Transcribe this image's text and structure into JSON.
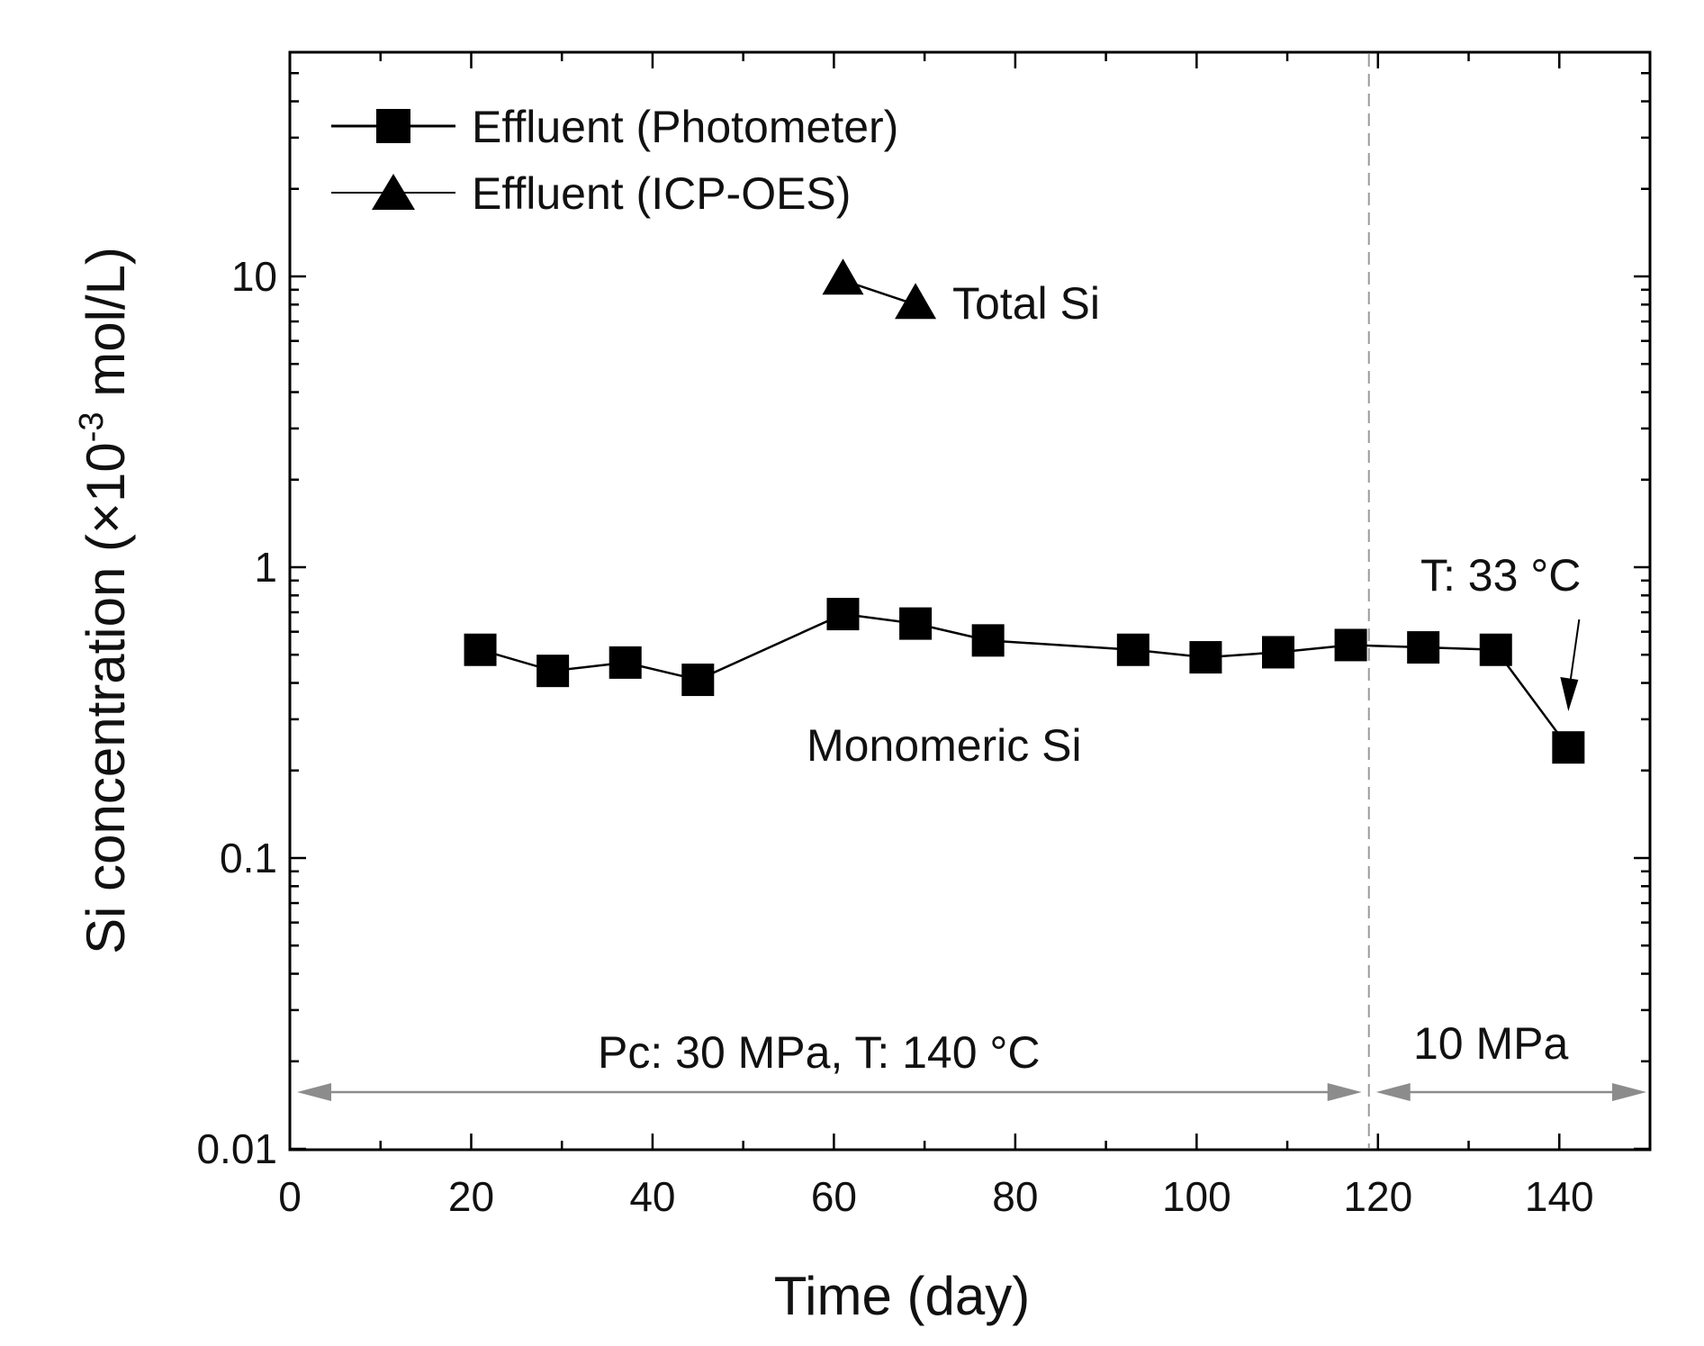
{
  "chart_data": {
    "type": "line",
    "title": "",
    "xlabel": "Time (day)",
    "ylabel": {
      "prefix": "Si concentration (×10",
      "exponent": "-3",
      "suffix": " mol/L)"
    },
    "xlim": [
      0,
      150
    ],
    "ylim": [
      0.01,
      60
    ],
    "yscale": "log",
    "xticks": [
      0,
      20,
      40,
      60,
      80,
      100,
      120,
      140
    ],
    "xtick_labels": [
      "0",
      "20",
      "40",
      "60",
      "80",
      "100",
      "120",
      "140"
    ],
    "yticks": [
      0.01,
      0.1,
      1,
      10
    ],
    "ytick_labels": [
      "0.01",
      "0.1",
      "1",
      "10"
    ],
    "legend_position": "top-left",
    "series": [
      {
        "name": "Effluent (Photometer)",
        "marker": "square",
        "x": [
          21,
          29,
          37,
          45,
          61,
          69,
          77,
          93,
          101,
          109,
          117,
          125,
          133,
          141
        ],
        "y": [
          0.52,
          0.44,
          0.47,
          0.41,
          0.69,
          0.64,
          0.56,
          0.52,
          0.49,
          0.51,
          0.54,
          0.53,
          0.52,
          0.24
        ]
      },
      {
        "name": "Effluent (ICP-OES)",
        "marker": "triangle",
        "x": [
          61,
          69
        ],
        "y": [
          9.7,
          8.0
        ]
      }
    ],
    "annotations": {
      "total_si": "Total Si",
      "monomeric_si": "Monomeric Si",
      "temp_change": "T: 33 °C",
      "phase1": "Pc: 30 MPa, T: 140 °C",
      "phase2": "10 MPa"
    },
    "phase_boundary_x": 119,
    "temp_change_x": 141,
    "colors": {
      "data": "#000000",
      "phase_arrow": "#8c8c8c",
      "boundary_line": "#9a9a9a"
    }
  }
}
